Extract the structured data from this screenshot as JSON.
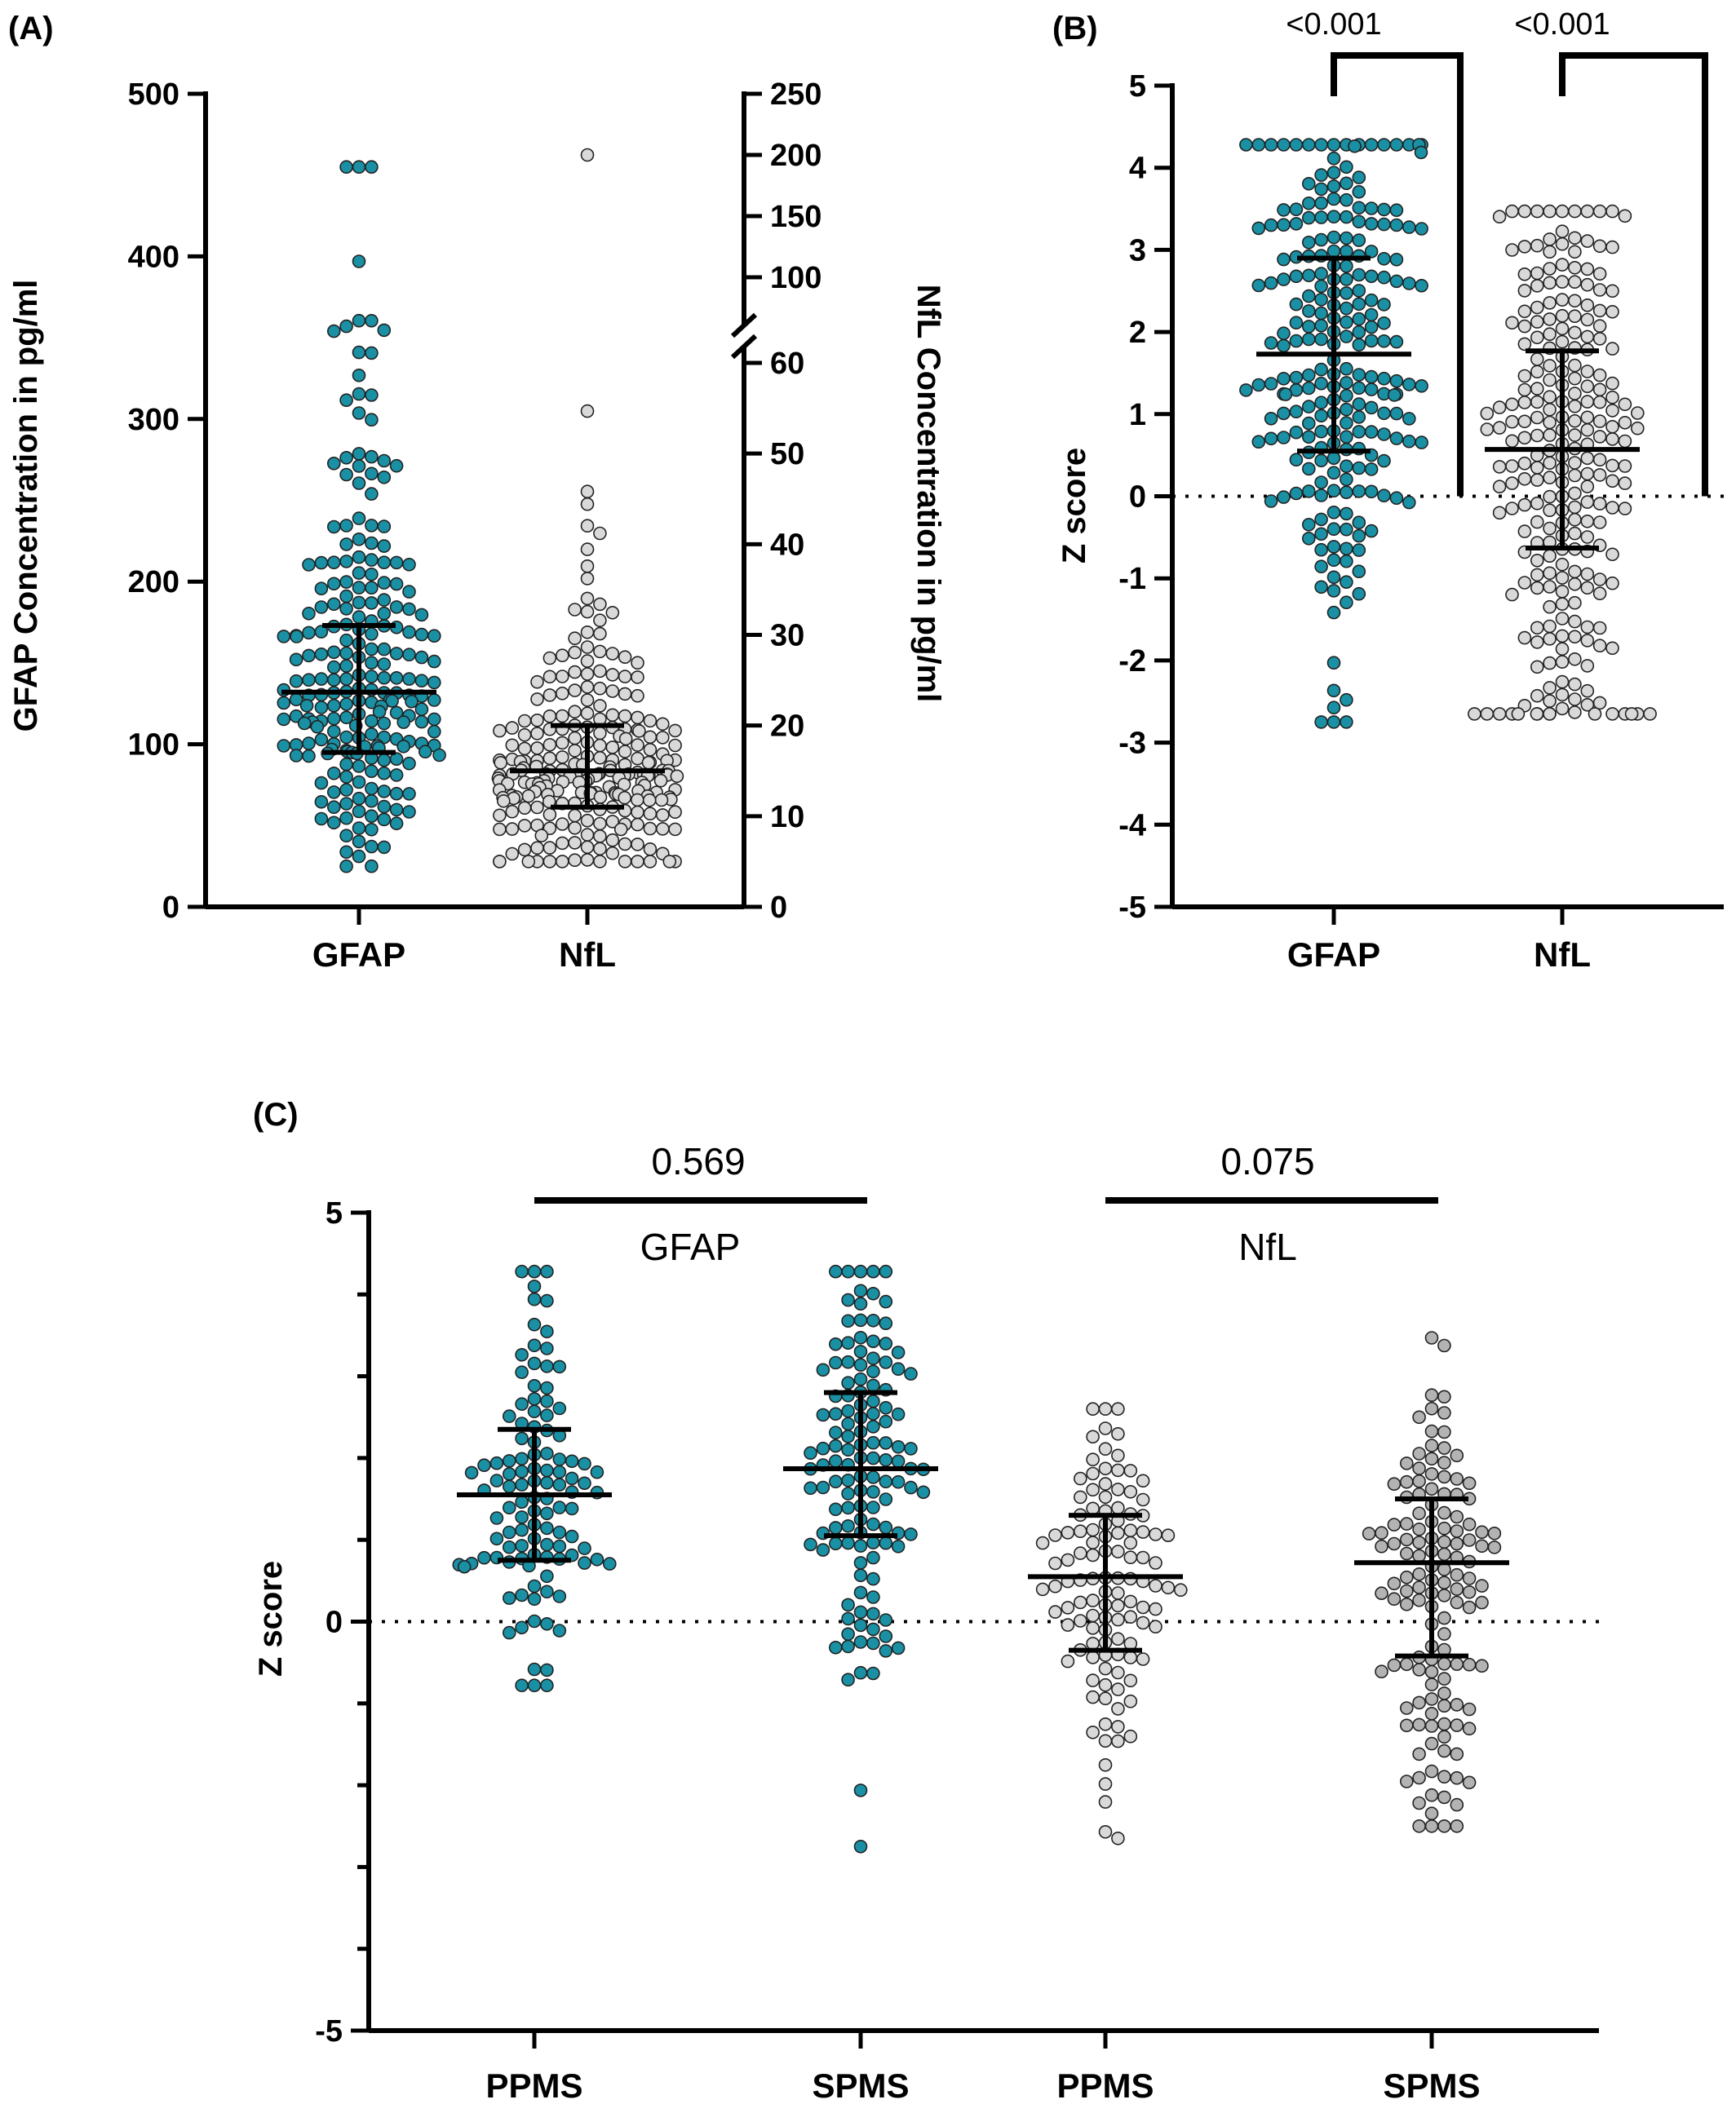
{
  "colors": {
    "gfap": "#1a90a4",
    "nfl": "#d9d9d9",
    "nfl_dark": "#a8a8a8",
    "outline": "#222222"
  },
  "chart_data": [
    {
      "panel": "(A)",
      "type": "scatter",
      "categories": [
        "GFAP",
        "NfL"
      ],
      "ylabel_left": "GFAP Concentration in pg/ml",
      "ylabel_right": "NfL Concentration in pg/ml",
      "ylim_left": [
        0,
        500
      ],
      "yticks_left": [
        "0",
        "100",
        "200",
        "300",
        "400",
        "500"
      ],
      "ylim_right": [
        0,
        250
      ],
      "yticks_right": [
        "0",
        "10",
        "20",
        "30",
        "40",
        "50",
        "60",
        "100",
        "150",
        "200",
        "250"
      ],
      "right_axis_break": "60-100",
      "summary": [
        {
          "name": "GFAP",
          "median": 132,
          "q1": 95,
          "q3": 173,
          "axis": "left",
          "max": 455,
          "min": 25
        },
        {
          "name": "NfL",
          "median": 15,
          "q1": 11,
          "q3": 20,
          "axis": "right",
          "max": 200,
          "min": 5
        }
      ],
      "grid": false
    },
    {
      "panel": "(B)",
      "type": "scatter",
      "categories": [
        "GFAP",
        "NfL"
      ],
      "ylabel": "Z score",
      "ylim": [
        -5,
        5
      ],
      "yticks": [
        "-5",
        "-4",
        "-3",
        "-2",
        "-1",
        "0",
        "1",
        "2",
        "3",
        "4",
        "5"
      ],
      "summary": [
        {
          "name": "GFAP",
          "median": 1.73,
          "q1": 0.55,
          "q3": 2.9,
          "max": 4.28,
          "min": -2.75
        },
        {
          "name": "NfL",
          "median": 0.57,
          "q1": -0.63,
          "q3": 1.77,
          "max": 3.47,
          "min": -2.65
        }
      ],
      "comparisons": [
        {
          "group": "GFAP",
          "p": "<0.001"
        },
        {
          "group": "NfL",
          "p": "<0.001"
        }
      ],
      "grid": false
    },
    {
      "panel": "(C)",
      "type": "scatter",
      "categories": [
        "PPMS",
        "SPMS",
        "PPMS",
        "SPMS"
      ],
      "ylabel": "Z score",
      "ylim": [
        -5,
        5
      ],
      "yticks": [
        "-5",
        "0",
        "5"
      ],
      "group_labels": [
        "GFAP",
        "NfL"
      ],
      "summary": [
        {
          "name": "GFAP PPMS",
          "median": 1.55,
          "q1": 0.75,
          "q3": 2.35,
          "max": 4.28,
          "min": -0.78
        },
        {
          "name": "GFAP SPMS",
          "median": 1.87,
          "q1": 1.05,
          "q3": 2.8,
          "max": 4.28,
          "min": -2.75
        },
        {
          "name": "NfL PPMS",
          "median": 0.55,
          "q1": -0.35,
          "q3": 1.3,
          "max": 2.6,
          "min": -2.65
        },
        {
          "name": "NfL SPMS",
          "median": 0.72,
          "q1": -0.42,
          "q3": 1.5,
          "max": 3.47,
          "min": -2.5
        }
      ],
      "comparisons": [
        {
          "group": "GFAP",
          "p": "0.569"
        },
        {
          "group": "NfL",
          "p": "0.075"
        }
      ],
      "grid": false
    }
  ]
}
